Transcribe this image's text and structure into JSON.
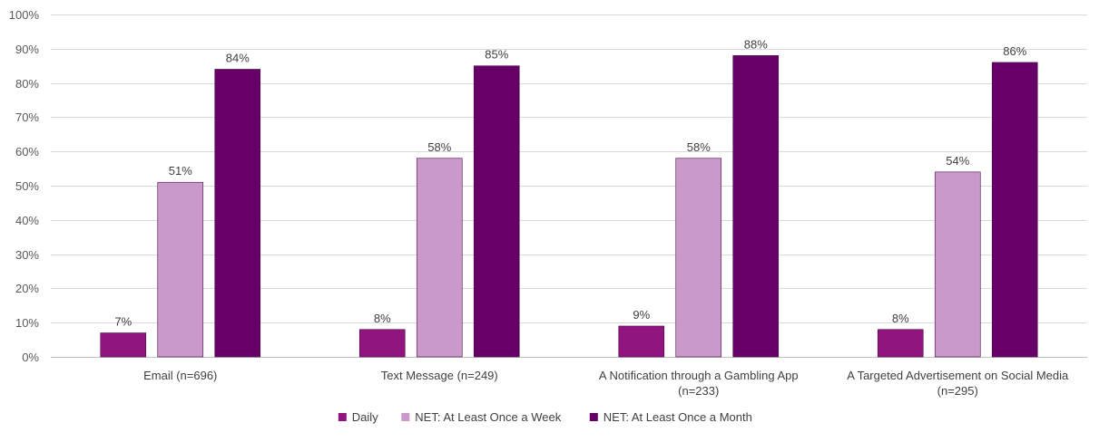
{
  "chart_data": {
    "type": "bar",
    "title": "",
    "xlabel": "",
    "ylabel": "",
    "ylim": [
      0,
      100
    ],
    "yticks": [
      "0%",
      "10%",
      "20%",
      "30%",
      "40%",
      "50%",
      "60%",
      "70%",
      "80%",
      "90%",
      "100%"
    ],
    "value_suffix": "%",
    "grid": true,
    "legend_position": "bottom",
    "categories": [
      [
        "Email (n=696)"
      ],
      [
        "Text Message (n=249)"
      ],
      [
        "A Notification through a Gambling App",
        "(n=233)"
      ],
      [
        "A Targeted Advertisement on Social Media",
        "(n=295)"
      ]
    ],
    "series": [
      {
        "name": "Daily",
        "color": "#91157f",
        "values": [
          7,
          8,
          9,
          8
        ]
      },
      {
        "name": "NET: At Least Once a Week",
        "color": "#c999ca",
        "values": [
          51,
          58,
          58,
          54
        ]
      },
      {
        "name": "NET: At Least Once a Month",
        "color": "#660066",
        "values": [
          84,
          85,
          88,
          86
        ]
      }
    ]
  }
}
